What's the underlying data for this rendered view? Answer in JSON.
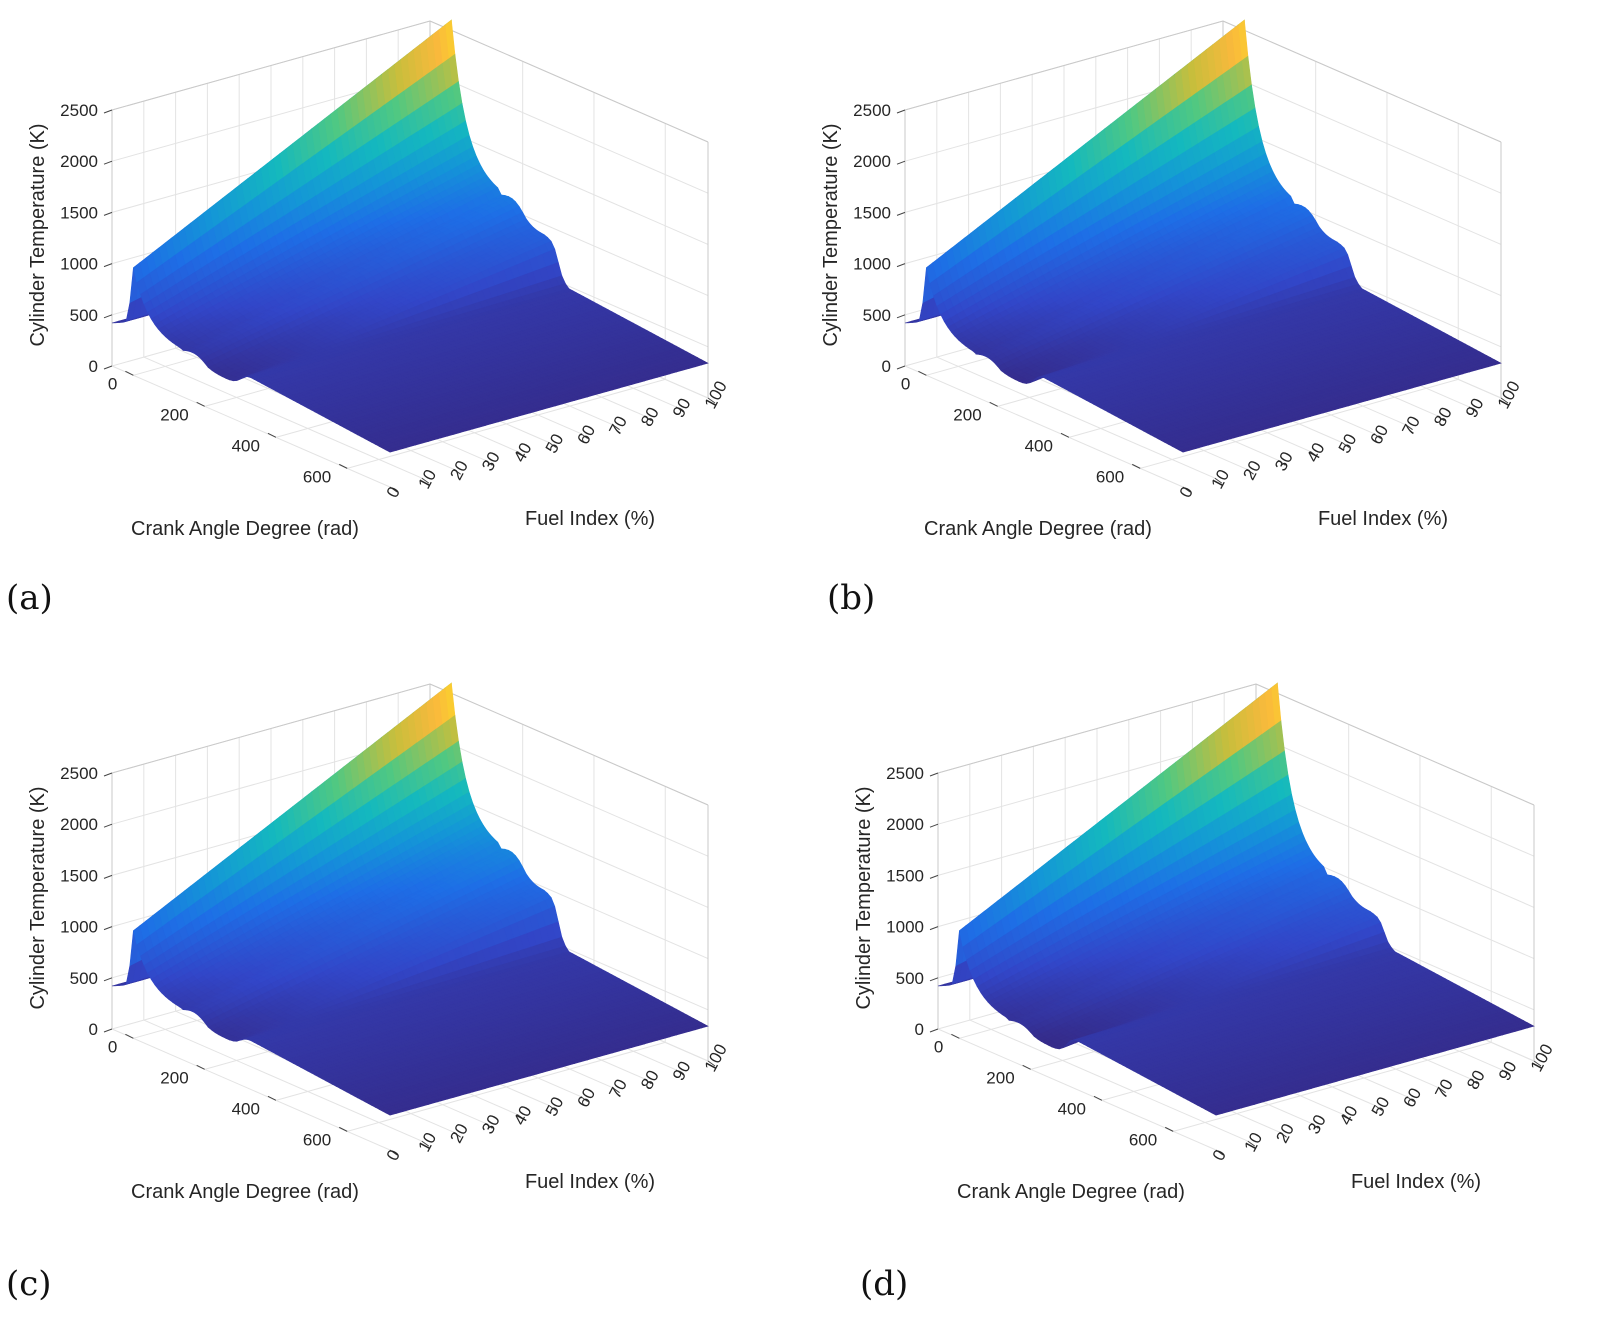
{
  "figure": {
    "type": "3d-surface-grid"
  },
  "chart_data": [
    {
      "type": "surface",
      "panel_label": "(a)",
      "zlabel": "Cylinder Temperature (K)",
      "xlabel": "Crank Angle Degree (rad)",
      "ylabel": "Fuel Index (%)",
      "x_ticks": [
        "0",
        "200",
        "400",
        "600"
      ],
      "y_ticks": [
        "0",
        "10",
        "20",
        "30",
        "40",
        "50",
        "60",
        "70",
        "80",
        "90",
        "100"
      ],
      "z_ticks": [
        "0",
        "500",
        "1000",
        "1500",
        "2000",
        "2500"
      ],
      "xlim": [
        -60,
        720
      ],
      "ylim": [
        0,
        100
      ],
      "zlim": [
        0,
        2500
      ],
      "peak_temperature_range": [
        1050,
        2600
      ],
      "colormap": "parula"
    },
    {
      "type": "surface",
      "panel_label": "(b)",
      "zlabel": "Cylinder Temperature (K)",
      "xlabel": "Crank Angle Degree (rad)",
      "ylabel": "Fuel Index (%)",
      "x_ticks": [
        "0",
        "200",
        "400",
        "600"
      ],
      "y_ticks": [
        "0",
        "10",
        "20",
        "30",
        "40",
        "50",
        "60",
        "70",
        "80",
        "90",
        "100"
      ],
      "z_ticks": [
        "0",
        "500",
        "1000",
        "1500",
        "2000",
        "2500"
      ],
      "xlim": [
        -60,
        720
      ],
      "ylim": [
        0,
        100
      ],
      "zlim": [
        0,
        2500
      ],
      "peak_temperature_range": [
        1050,
        2600
      ],
      "colormap": "parula"
    },
    {
      "type": "surface",
      "panel_label": "(c)",
      "zlabel": "Cylinder Temperature (K)",
      "xlabel": "Crank Angle Degree (rad)",
      "ylabel": "Fuel Index (%)",
      "x_ticks": [
        "0",
        "200",
        "400",
        "600"
      ],
      "y_ticks": [
        "0",
        "10",
        "20",
        "30",
        "40",
        "50",
        "60",
        "70",
        "80",
        "90",
        "100"
      ],
      "z_ticks": [
        "0",
        "500",
        "1000",
        "1500",
        "2000",
        "2500"
      ],
      "xlim": [
        -60,
        720
      ],
      "ylim": [
        0,
        100
      ],
      "zlim": [
        0,
        2500
      ],
      "peak_temperature_range": [
        1050,
        2600
      ],
      "colormap": "parula"
    },
    {
      "type": "surface",
      "panel_label": "(d)",
      "zlabel": "Cylinder Temperature (K)",
      "xlabel": "Crank Angle Degree (rad)",
      "ylabel": "Fuel Index (%)",
      "x_ticks": [
        "0",
        "200",
        "400",
        "600"
      ],
      "y_ticks": [
        "0",
        "10",
        "20",
        "30",
        "40",
        "50",
        "60",
        "70",
        "80",
        "90",
        "100"
      ],
      "z_ticks": [
        "0",
        "500",
        "1000",
        "1500",
        "2000",
        "2500"
      ],
      "xlim": [
        -60,
        720
      ],
      "ylim": [
        0,
        100
      ],
      "zlim": [
        0,
        2500
      ],
      "peak_temperature_range": [
        1050,
        2600
      ],
      "colormap": "parula"
    }
  ]
}
